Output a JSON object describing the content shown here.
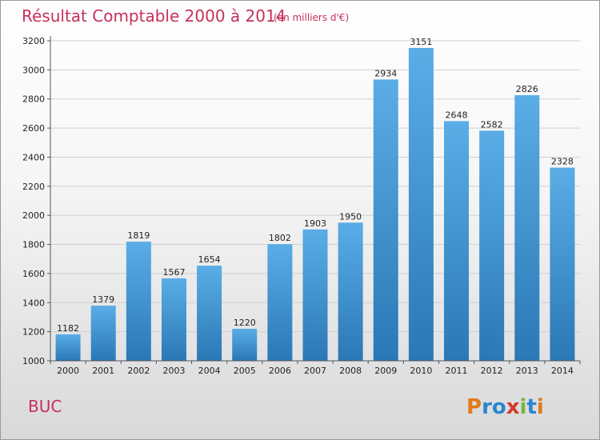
{
  "chart_data": {
    "type": "bar",
    "title": "Résultat Comptable 2000 à 2014",
    "subtitle": "(en milliers d'€)",
    "categories": [
      "2000",
      "2001",
      "2002",
      "2003",
      "2004",
      "2005",
      "2006",
      "2007",
      "2008",
      "2009",
      "2010",
      "2011",
      "2012",
      "2013",
      "2014"
    ],
    "values": [
      1182,
      1379,
      1819,
      1567,
      1654,
      1220,
      1802,
      1903,
      1950,
      2934,
      3151,
      2648,
      2582,
      2826,
      2328
    ],
    "ylim": [
      1000,
      3200
    ],
    "yticks": [
      1000,
      1200,
      1400,
      1600,
      1800,
      2000,
      2200,
      2400,
      2600,
      2800,
      3000,
      3200
    ],
    "xlabel": "",
    "ylabel": "",
    "grid": true
  },
  "footer": {
    "place": "BUC",
    "logo": "Proxiti"
  },
  "colors": {
    "title": "#c7305a",
    "bar_top": "#5aade6",
    "bar_bottom": "#2a78b6",
    "grid": "#cfcfcf"
  }
}
